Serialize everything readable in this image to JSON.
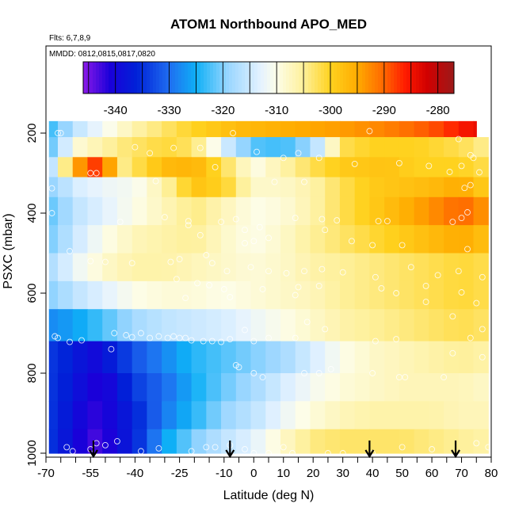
{
  "chart_data": {
    "type": "heatmap",
    "title": "ATOM1 Northbound APO_MED",
    "notes": [
      "Flts: 6,7,8,9",
      "MMDD: 0812,0815,0817,0820"
    ],
    "xlabel": "Latitude (deg N)",
    "ylabel": "PSXC (mbar)",
    "xlim": [
      -70,
      80
    ],
    "ylim": [
      1000,
      0
    ],
    "x_ticks": [
      -70,
      -55,
      -40,
      -25,
      -10,
      0,
      10,
      20,
      30,
      40,
      50,
      60,
      70,
      80
    ],
    "x_ticks_minor": [
      -65,
      -60,
      -50,
      -45,
      -35,
      -30,
      -20,
      -15,
      -5,
      5,
      15,
      25,
      35,
      45,
      55,
      65,
      75
    ],
    "x_tick_labels": [
      "-70",
      "-55",
      "-40",
      "-25",
      "-10",
      "0",
      "10",
      "20",
      "30",
      "40",
      "50",
      "60",
      "70",
      "80"
    ],
    "y_ticks": [
      200,
      400,
      600,
      800,
      1000
    ],
    "y_tick_labels": [
      "200",
      "400",
      "600",
      "800",
      "1000"
    ],
    "colorbar": {
      "placement": "top",
      "range": [
        -346,
        -277
      ],
      "ticks": [
        -340,
        -330,
        -320,
        -310,
        -300,
        -290,
        -280
      ],
      "tick_labels": [
        "-340",
        "-330",
        "-320",
        "-310",
        "-300",
        "-290",
        "-280"
      ],
      "stops": [
        {
          "v": -346,
          "color": "#8c1ae8"
        },
        {
          "v": -341,
          "color": "#1a00d9"
        },
        {
          "v": -336,
          "color": "#0022d8"
        },
        {
          "v": -330,
          "color": "#1f6df0"
        },
        {
          "v": -325,
          "color": "#0fb0f6"
        },
        {
          "v": -319,
          "color": "#9ad6ff"
        },
        {
          "v": -313,
          "color": "#e4f2ff"
        },
        {
          "v": -310,
          "color": "#fdfde8"
        },
        {
          "v": -305,
          "color": "#fef09a"
        },
        {
          "v": -300,
          "color": "#ffd21f"
        },
        {
          "v": -295,
          "color": "#ffab00"
        },
        {
          "v": -290,
          "color": "#ff6600"
        },
        {
          "v": -286,
          "color": "#ff1a00"
        },
        {
          "v": -282,
          "color": "#d10000"
        },
        {
          "v": -277,
          "color": "#9c1a1a"
        }
      ]
    },
    "grid": false,
    "lat_grid": [
      -69,
      -66,
      -61,
      -56,
      -51,
      -46,
      -41,
      -36,
      -31,
      -26,
      -21,
      -16,
      -11,
      -6,
      -1,
      4,
      9,
      14,
      19,
      24,
      29,
      34,
      39,
      44,
      49,
      54,
      59,
      64,
      69,
      74,
      79
    ],
    "pressure_bands": [
      {
        "top": 170,
        "bottom": 210
      },
      {
        "top": 210,
        "bottom": 260
      },
      {
        "top": 260,
        "bottom": 310
      },
      {
        "top": 310,
        "bottom": 360
      },
      {
        "top": 360,
        "bottom": 430
      },
      {
        "top": 430,
        "bottom": 500
      },
      {
        "top": 500,
        "bottom": 570
      },
      {
        "top": 570,
        "bottom": 640
      },
      {
        "top": 640,
        "bottom": 720
      },
      {
        "top": 720,
        "bottom": 800
      },
      {
        "top": 800,
        "bottom": 870
      },
      {
        "top": 870,
        "bottom": 940
      },
      {
        "top": 940,
        "bottom": 1000
      }
    ],
    "band_keys": [
      {
        "lat": [
          -69,
          -60,
          -40,
          -20,
          -5,
          5,
          15,
          30,
          45,
          60,
          75
        ],
        "val": [
          -324,
          -316,
          -306,
          -300,
          -297,
          -296,
          -295,
          -294,
          -292,
          -289,
          -284
        ]
      },
      {
        "lat": [
          -69,
          -60,
          -45,
          -30,
          -20,
          -10,
          0,
          10,
          20,
          30,
          40,
          55,
          70,
          79
        ],
        "val": [
          -323,
          -309,
          -304,
          -301,
          -303,
          -314,
          -322,
          -323,
          -318,
          -302,
          -300,
          -300,
          -302,
          -305
        ]
      },
      {
        "lat": [
          -69,
          -62,
          -55,
          -50,
          -45,
          -30,
          -20,
          -10,
          0,
          10,
          20,
          30,
          45,
          55,
          70,
          79
        ],
        "val": [
          -320,
          -300,
          -287,
          -290,
          -305,
          -297,
          -296,
          -302,
          -310,
          -306,
          -302,
          -299,
          -298,
          -300,
          -300,
          -302
        ]
      },
      {
        "lat": [
          -69,
          -60,
          -50,
          -40,
          -30,
          -20,
          -10,
          0,
          10,
          20,
          30,
          40,
          50,
          60,
          70,
          79
        ],
        "val": [
          -320,
          -314,
          -312,
          -311,
          -306,
          -298,
          -300,
          -308,
          -308,
          -306,
          -302,
          -299,
          -298,
          -297,
          -295,
          -300
        ]
      },
      {
        "lat": [
          -69,
          -60,
          -50,
          -40,
          -30,
          -20,
          -10,
          0,
          10,
          20,
          30,
          40,
          50,
          60,
          70,
          79
        ],
        "val": [
          -322,
          -316,
          -313,
          -310,
          -307,
          -304,
          -307,
          -310,
          -309,
          -306,
          -302,
          -299,
          -296,
          -293,
          -290,
          -294
        ]
      },
      {
        "lat": [
          -69,
          -60,
          -50,
          -40,
          -30,
          -20,
          -10,
          0,
          10,
          20,
          30,
          40,
          50,
          60,
          70,
          79
        ],
        "val": [
          -321,
          -315,
          -310,
          -307,
          -306,
          -305,
          -308,
          -310,
          -308,
          -305,
          -303,
          -301,
          -299,
          -297,
          -295,
          -298
        ]
      },
      {
        "lat": [
          -69,
          -60,
          -50,
          -40,
          -30,
          -20,
          -10,
          0,
          10,
          20,
          30,
          40,
          50,
          60,
          70,
          79
        ],
        "val": [
          -318,
          -312,
          -308,
          -306,
          -306,
          -307,
          -308,
          -309,
          -308,
          -306,
          -305,
          -304,
          -303,
          -302,
          -301,
          -302
        ]
      },
      {
        "lat": [
          -69,
          -60,
          -50,
          -40,
          -30,
          -20,
          -10,
          0,
          10,
          20,
          30,
          40,
          50,
          60,
          70,
          79
        ],
        "val": [
          -320,
          -316,
          -313,
          -310,
          -309,
          -309,
          -310,
          -309,
          -308,
          -307,
          -305,
          -304,
          -303,
          -302,
          -301,
          -302
        ]
      },
      {
        "lat": [
          -69,
          -60,
          -50,
          -40,
          -30,
          -20,
          -10,
          0,
          10,
          20,
          30,
          40,
          50,
          60,
          70,
          79
        ],
        "val": [
          -328,
          -326,
          -322,
          -318,
          -316,
          -315,
          -314,
          -312,
          -310,
          -308,
          -306,
          -305,
          -304,
          -303,
          -302,
          -303
        ]
      },
      {
        "lat": [
          -69,
          -60,
          -55,
          -50,
          -40,
          -30,
          -20,
          -10,
          0,
          10,
          20,
          30,
          40,
          50,
          60,
          70,
          79
        ],
        "val": [
          -334,
          -337,
          -340,
          -338,
          -332,
          -328,
          -324,
          -322,
          -320,
          -318,
          -314,
          -310,
          -308,
          -307,
          -306,
          -305,
          -306
        ]
      },
      {
        "lat": [
          -69,
          -60,
          -55,
          -50,
          -40,
          -30,
          -20,
          -10,
          0,
          10,
          20,
          30,
          40,
          50,
          60,
          70,
          79
        ],
        "val": [
          -334,
          -338,
          -341,
          -341,
          -334,
          -330,
          -325,
          -321,
          -318,
          -314,
          -311,
          -309,
          -308,
          -307,
          -307,
          -307,
          -308
        ]
      },
      {
        "lat": [
          -69,
          -60,
          -55,
          -50,
          -40,
          -30,
          -20,
          -10,
          0,
          10,
          20,
          30,
          40,
          50,
          60,
          70,
          79
        ],
        "val": [
          -334,
          -339,
          -342,
          -341,
          -336,
          -329,
          -324,
          -319,
          -316,
          -312,
          -309,
          -307,
          -306,
          -306,
          -306,
          -307,
          -307
        ]
      },
      {
        "lat": [
          -69,
          -60,
          -55,
          -50,
          -40,
          -30,
          -20,
          -10,
          0,
          10,
          20,
          30,
          40,
          50,
          60,
          70,
          79
        ],
        "val": [
          -334,
          -340,
          -343,
          -342,
          -336,
          -326,
          -320,
          -316,
          -313,
          -308,
          -304,
          -303,
          -303,
          -303,
          -304,
          -305,
          -306
        ]
      }
    ],
    "observations": [
      [
        -66,
        200
      ],
      [
        -65,
        200
      ],
      [
        -40,
        235
      ],
      [
        -35,
        250
      ],
      [
        -27,
        237
      ],
      [
        -18,
        237
      ],
      [
        -7,
        200
      ],
      [
        1,
        247
      ],
      [
        10,
        262
      ],
      [
        15,
        250
      ],
      [
        22,
        262
      ],
      [
        39,
        195
      ],
      [
        69,
        215
      ],
      [
        73,
        255
      ],
      [
        74,
        262
      ],
      [
        -55,
        300
      ],
      [
        -53,
        300
      ],
      [
        -13,
        285
      ],
      [
        34,
        277
      ],
      [
        49,
        275
      ],
      [
        59,
        282
      ],
      [
        66,
        297
      ],
      [
        70,
        282
      ],
      [
        -68,
        338
      ],
      [
        -33,
        320
      ],
      [
        7,
        322
      ],
      [
        17,
        322
      ],
      [
        71,
        337
      ],
      [
        73,
        330
      ],
      [
        76,
        298
      ],
      [
        -68,
        400
      ],
      [
        -45,
        422
      ],
      [
        -30,
        410
      ],
      [
        -22,
        420
      ],
      [
        -22,
        430
      ],
      [
        -11,
        422
      ],
      [
        -6,
        415
      ],
      [
        -3,
        442
      ],
      [
        2,
        435
      ],
      [
        14,
        412
      ],
      [
        23,
        415
      ],
      [
        24,
        442
      ],
      [
        28,
        418
      ],
      [
        42,
        420
      ],
      [
        45,
        420
      ],
      [
        67,
        422
      ],
      [
        70,
        412
      ],
      [
        72,
        398
      ],
      [
        -18,
        455
      ],
      [
        0,
        470
      ],
      [
        -3,
        475
      ],
      [
        5,
        462
      ],
      [
        33,
        470
      ],
      [
        40,
        480
      ],
      [
        50,
        480
      ],
      [
        72,
        490
      ],
      [
        -62,
        495
      ],
      [
        -55,
        520
      ],
      [
        -50,
        522
      ],
      [
        -41,
        525
      ],
      [
        -28,
        522
      ],
      [
        -25,
        515
      ],
      [
        -16,
        505
      ],
      [
        -14,
        525
      ],
      [
        -9,
        545
      ],
      [
        -1,
        535
      ],
      [
        5,
        545
      ],
      [
        11,
        550
      ],
      [
        17,
        545
      ],
      [
        23,
        540
      ],
      [
        30,
        548
      ],
      [
        41,
        560
      ],
      [
        53,
        535
      ],
      [
        62,
        555
      ],
      [
        69,
        545
      ],
      [
        77,
        560
      ],
      [
        -26,
        565
      ],
      [
        -19,
        575
      ],
      [
        -15,
        580
      ],
      [
        3,
        590
      ],
      [
        15,
        585
      ],
      [
        22,
        582
      ],
      [
        43,
        588
      ],
      [
        58,
        582
      ],
      [
        70,
        598
      ],
      [
        -10,
        590
      ],
      [
        -23,
        612
      ],
      [
        -8,
        610
      ],
      [
        14,
        605
      ],
      [
        48,
        600
      ],
      [
        58,
        622
      ],
      [
        75,
        625
      ],
      [
        -67,
        708
      ],
      [
        -66,
        712
      ],
      [
        -62,
        722
      ],
      [
        -58,
        718
      ],
      [
        -47,
        700
      ],
      [
        -43,
        705
      ],
      [
        -41,
        710
      ],
      [
        -38,
        700
      ],
      [
        -35,
        712
      ],
      [
        -32,
        708
      ],
      [
        -29,
        712
      ],
      [
        -27,
        708
      ],
      [
        -25,
        712
      ],
      [
        -23,
        712
      ],
      [
        -21,
        718
      ],
      [
        -17,
        720
      ],
      [
        -14,
        720
      ],
      [
        -11,
        722
      ],
      [
        -8,
        715
      ],
      [
        -3,
        692
      ],
      [
        0,
        720
      ],
      [
        5,
        712
      ],
      [
        14,
        712
      ],
      [
        18,
        672
      ],
      [
        24,
        690
      ],
      [
        41,
        720
      ],
      [
        48,
        715
      ],
      [
        67,
        658
      ],
      [
        73,
        712
      ],
      [
        77,
        690
      ],
      [
        -48,
        740
      ],
      [
        67,
        750
      ],
      [
        77,
        760
      ],
      [
        -6,
        780
      ],
      [
        -5,
        785
      ],
      [
        0,
        800
      ],
      [
        3,
        810
      ],
      [
        17,
        800
      ],
      [
        22,
        800
      ],
      [
        26,
        790
      ],
      [
        40,
        800
      ],
      [
        49,
        810
      ],
      [
        51,
        810
      ],
      [
        64,
        810
      ],
      [
        -63,
        985
      ],
      [
        -61,
        995
      ],
      [
        -55,
        990
      ],
      [
        -53,
        975
      ],
      [
        -50,
        980
      ],
      [
        -46,
        970
      ],
      [
        -38,
        995
      ],
      [
        -32,
        988
      ],
      [
        -21,
        995
      ],
      [
        -16,
        985
      ],
      [
        -13,
        985
      ],
      [
        -8,
        980
      ],
      [
        -3,
        990
      ],
      [
        0,
        1000
      ],
      [
        5,
        1000
      ],
      [
        10,
        985
      ],
      [
        13,
        1000
      ],
      [
        25,
        1000
      ],
      [
        30,
        1000
      ],
      [
        40,
        1000
      ],
      [
        50,
        985
      ],
      [
        60,
        990
      ],
      [
        75,
        975
      ],
      [
        79,
        985
      ]
    ],
    "arrows": [
      -54,
      -8,
      39,
      68
    ]
  }
}
